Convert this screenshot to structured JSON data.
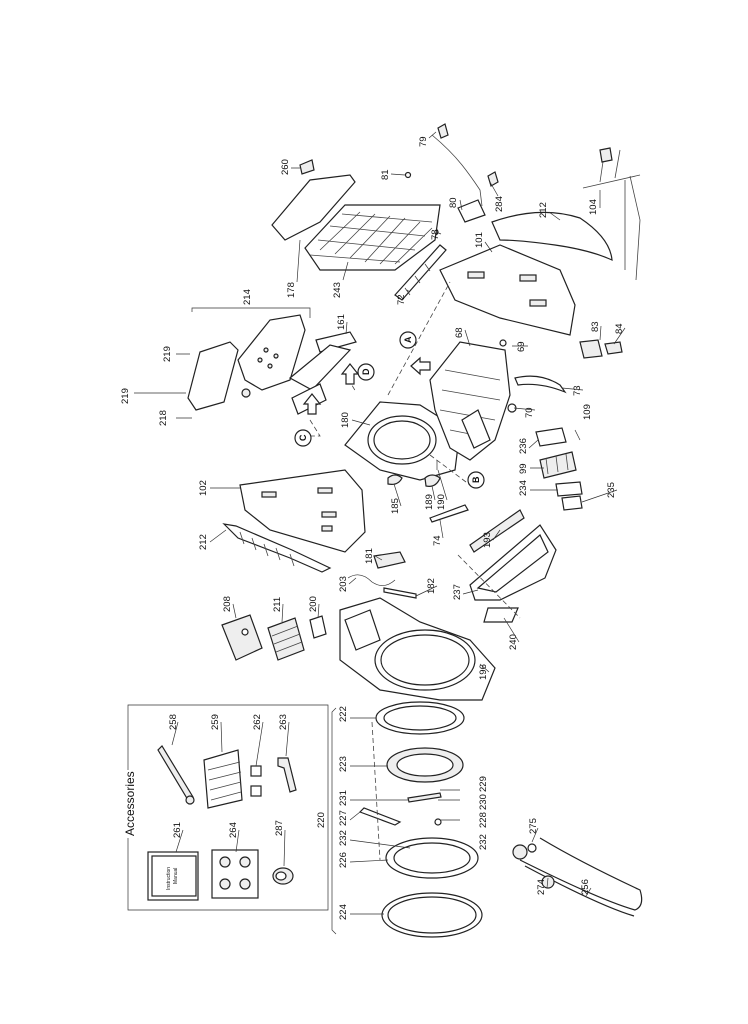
{
  "accessories": {
    "title": "Accessories",
    "manual_label_1": "Instruction",
    "manual_label_2": "Manual"
  },
  "labels": {
    "p260": "260",
    "p81": "81",
    "p79": "79",
    "p284": "284",
    "p80": "80",
    "p78": "78",
    "p212_top": "212",
    "p104": "104",
    "p101": "101",
    "p178": "178",
    "p243": "243",
    "p72": "72",
    "p214": "214",
    "p161": "161",
    "p219_a": "219",
    "p219_b": "219",
    "p218": "218",
    "p68": "68",
    "p69": "69",
    "p83": "83",
    "p84": "84",
    "p73": "73",
    "p70": "70",
    "p109": "109",
    "p180": "180",
    "p236": "236",
    "p99": "99",
    "p234": "234",
    "p235": "235",
    "p102": "102",
    "p185": "185",
    "p189": "189",
    "p190": "190",
    "p74": "74",
    "p193": "193",
    "p212_left": "212",
    "p181": "181",
    "p203": "203",
    "p182": "182",
    "p237": "237",
    "p208": "208",
    "p211": "211",
    "p200": "200",
    "p240": "240",
    "p196": "196",
    "p258": "258",
    "p259": "259",
    "p262": "262",
    "p263": "263",
    "p222": "222",
    "p223": "223",
    "p229": "229",
    "p231": "231",
    "p230": "230",
    "p220": "220",
    "p227": "227",
    "p228": "228",
    "p275": "275",
    "p261": "261",
    "p264": "264",
    "p287": "287",
    "p232_a": "232",
    "p232_b": "232",
    "p226": "226",
    "p274": "274",
    "p256": "256",
    "p224": "224"
  },
  "markers": {
    "A": "A",
    "B": "B",
    "C": "C",
    "D": "D"
  }
}
